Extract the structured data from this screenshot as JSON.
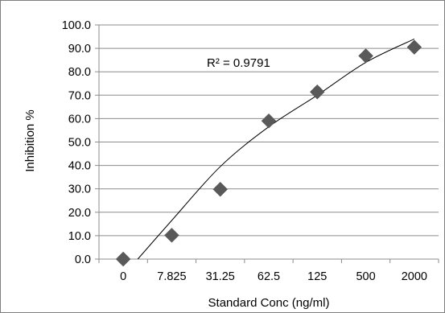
{
  "chart_data": {
    "type": "scatter",
    "title": "",
    "xlabel": "Standard Conc (ng/ml)",
    "ylabel": "Inhibition %",
    "x_type": "category",
    "categories": [
      "0",
      "7.825",
      "31.25",
      "62.5",
      "125",
      "500",
      "2000"
    ],
    "ylim": [
      0,
      100
    ],
    "y_tick_labels": [
      "0.0",
      "10.0",
      "20.0",
      "30.0",
      "40.0",
      "50.0",
      "60.0",
      "70.0",
      "80.0",
      "90.0",
      "100.0"
    ],
    "grid": true,
    "legend": "none",
    "series": [
      {
        "marker": "diamond",
        "color": "#595959",
        "values": [
          0.0,
          10.2,
          29.8,
          59.0,
          71.4,
          86.8,
          90.5
        ]
      }
    ],
    "trendline": {
      "type": "logarithmic",
      "color": "#000000",
      "r_squared_label": "R² = 0.9791",
      "points": [
        {
          "x": "7.825",
          "y": 16.5
        },
        {
          "x": "31.25",
          "y": 39.5
        },
        {
          "x": "62.5",
          "y": 56.5
        },
        {
          "x": "125",
          "y": 70.0
        },
        {
          "x": "500",
          "y": 84.0
        },
        {
          "x": "2000",
          "y": 94.0
        }
      ]
    }
  }
}
